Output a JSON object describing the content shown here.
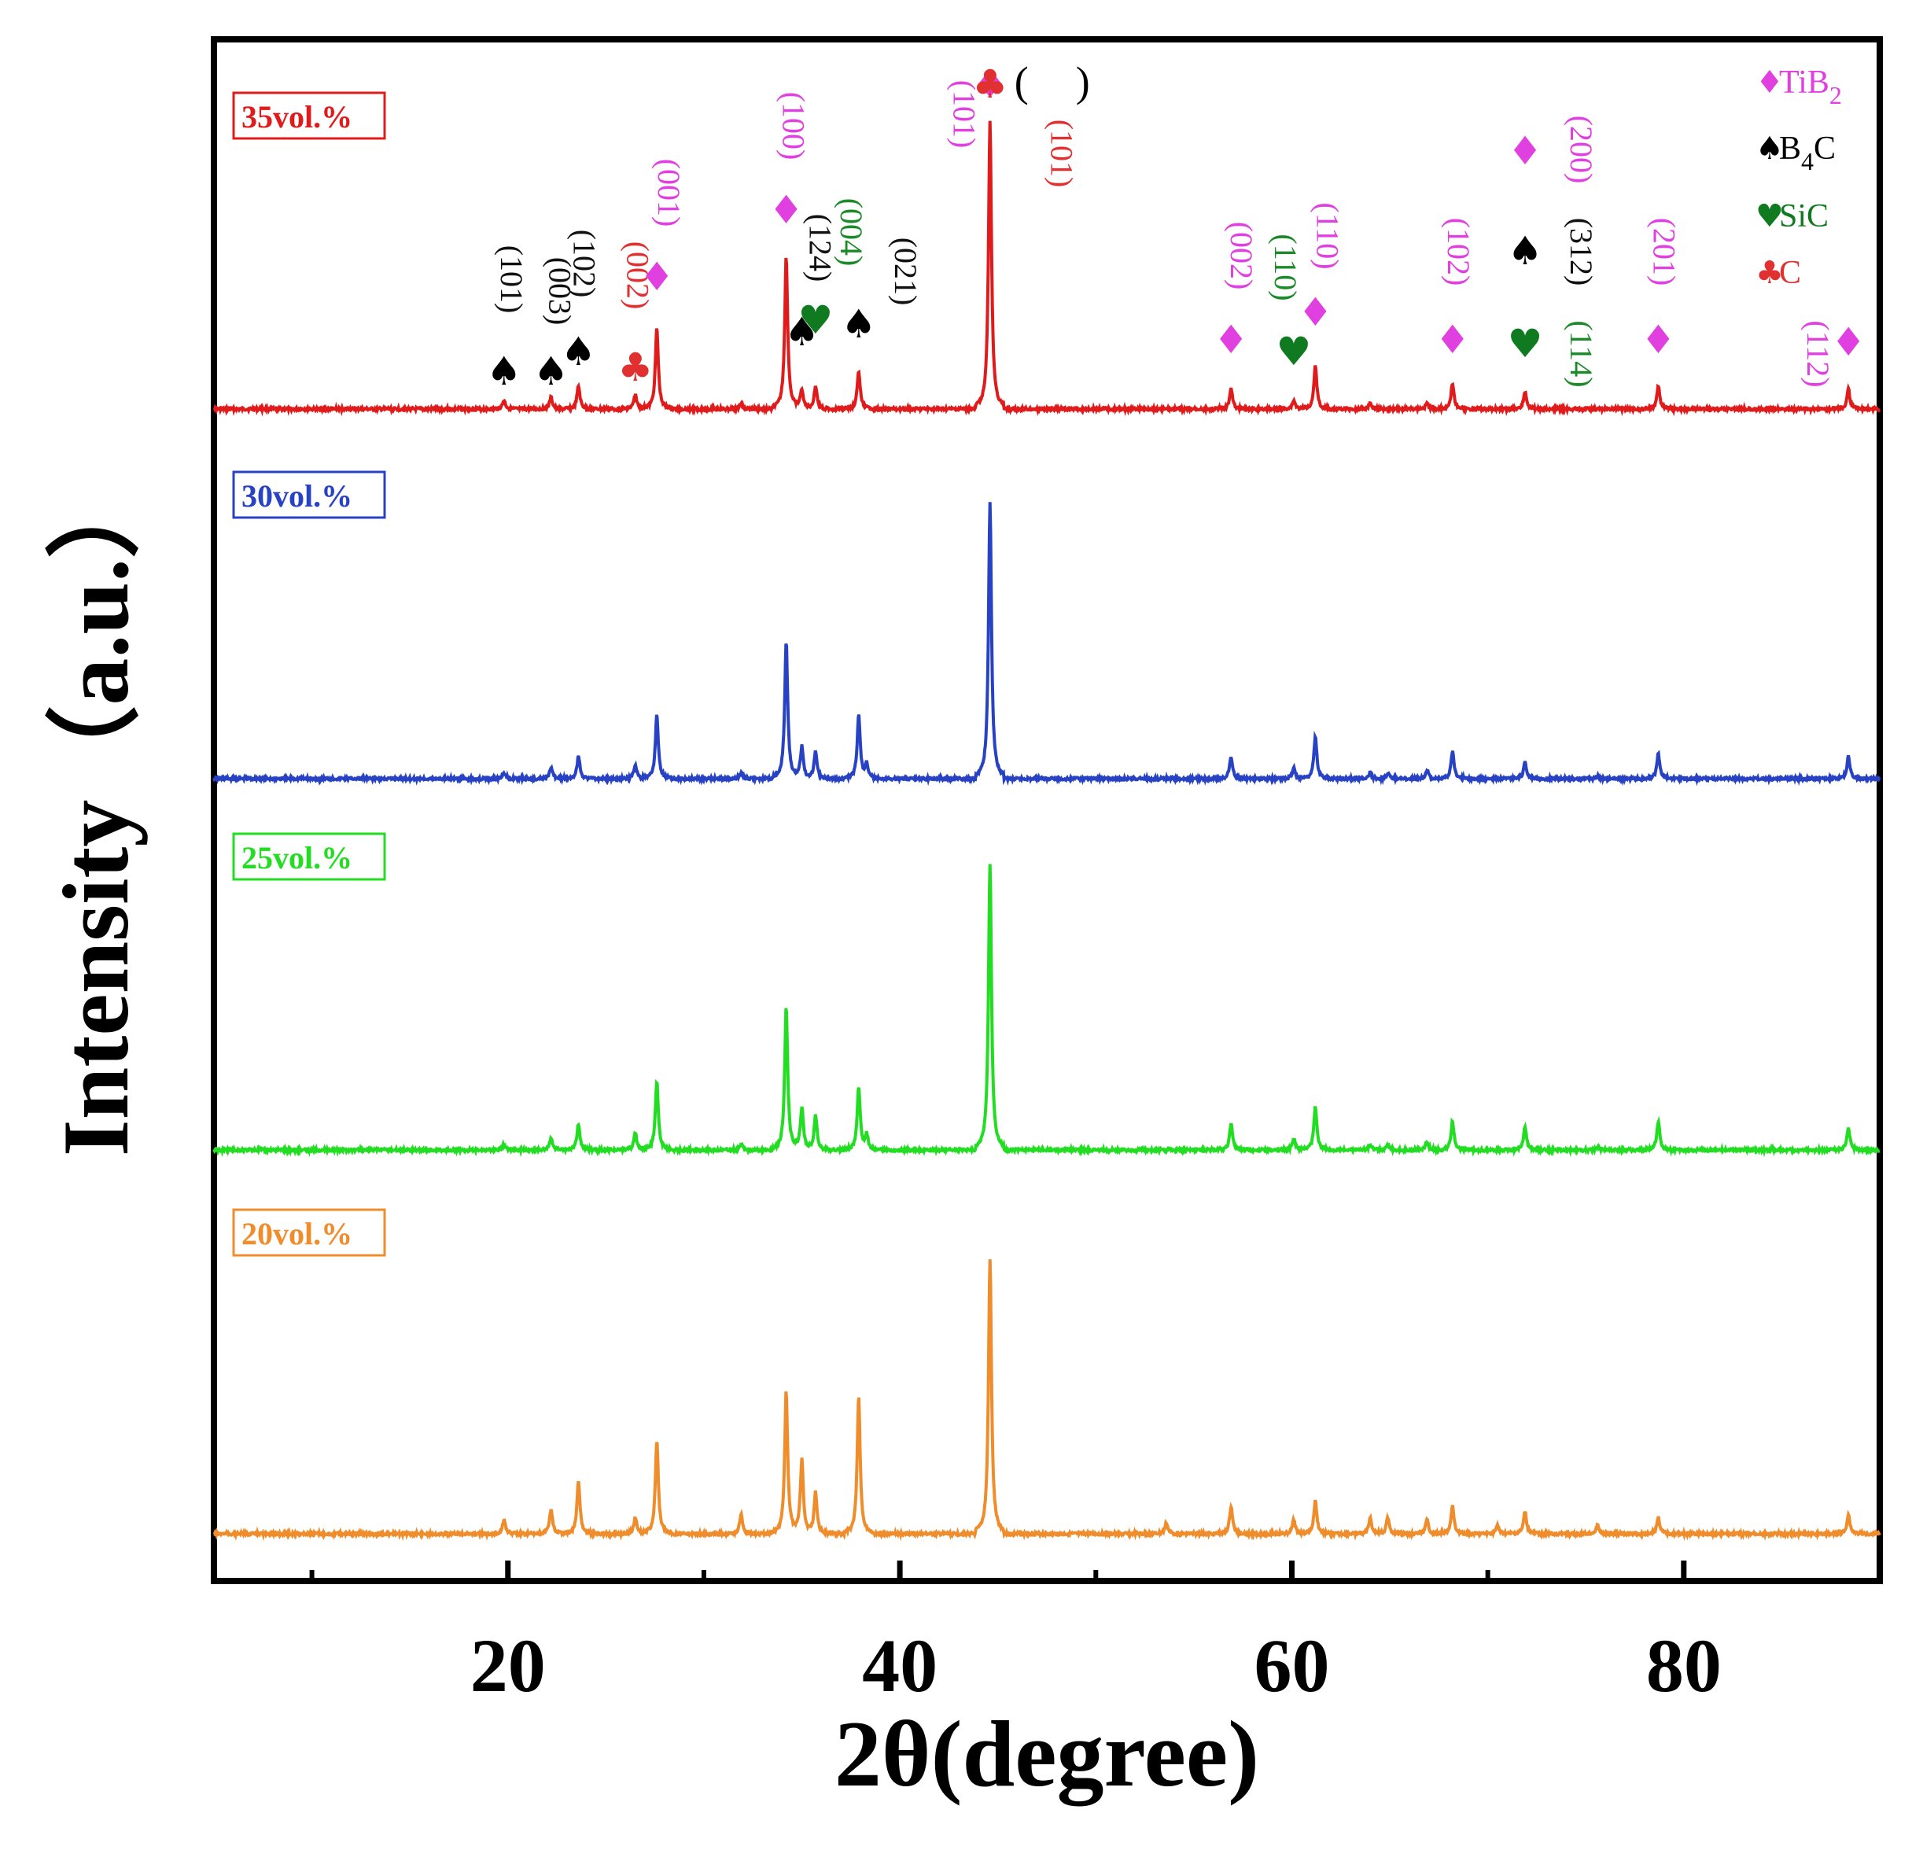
{
  "chart_data": {
    "type": "line",
    "title": "",
    "xlabel": "2θ(degree)",
    "ylabel": "Intensity（a.u.）",
    "xlim": [
      5,
      90
    ],
    "xticks": [
      20,
      40,
      60,
      80
    ],
    "xtick_labels": [
      "20",
      "40",
      "60",
      "80"
    ],
    "y_ticks_shown": false,
    "series": [
      {
        "name": "35vol.%",
        "color": "#e01b1b",
        "peaks": [
          [
            19.8,
            0.03
          ],
          [
            22.2,
            0.04
          ],
          [
            23.6,
            0.08
          ],
          [
            26.5,
            0.05
          ],
          [
            27.6,
            0.28
          ],
          [
            31.9,
            0.02
          ],
          [
            34.2,
            0.53
          ],
          [
            35.0,
            0.07
          ],
          [
            35.7,
            0.08
          ],
          [
            37.9,
            0.13
          ],
          [
            44.6,
            1.0
          ],
          [
            56.9,
            0.07
          ],
          [
            60.1,
            0.03
          ],
          [
            61.2,
            0.15
          ],
          [
            64.0,
            0.02
          ],
          [
            66.9,
            0.02
          ],
          [
            68.2,
            0.09
          ],
          [
            71.9,
            0.06
          ],
          [
            78.7,
            0.08
          ],
          [
            88.4,
            0.07
          ]
        ]
      },
      {
        "name": "30vol.%",
        "color": "#2842c4",
        "peaks": [
          [
            19.8,
            0.02
          ],
          [
            22.2,
            0.04
          ],
          [
            23.6,
            0.08
          ],
          [
            26.5,
            0.05
          ],
          [
            27.6,
            0.23
          ],
          [
            31.9,
            0.02
          ],
          [
            34.2,
            0.5
          ],
          [
            35.0,
            0.12
          ],
          [
            35.7,
            0.1
          ],
          [
            37.9,
            0.23
          ],
          [
            38.3,
            0.05
          ],
          [
            44.6,
            1.0
          ],
          [
            56.9,
            0.08
          ],
          [
            60.1,
            0.04
          ],
          [
            61.2,
            0.15
          ],
          [
            64.0,
            0.02
          ],
          [
            64.9,
            0.02
          ],
          [
            66.9,
            0.03
          ],
          [
            68.2,
            0.1
          ],
          [
            71.9,
            0.06
          ],
          [
            75.6,
            0.01
          ],
          [
            78.7,
            0.09
          ],
          [
            88.4,
            0.08
          ]
        ]
      },
      {
        "name": "25vol.%",
        "color": "#22dd22",
        "peaks": [
          [
            19.8,
            0.02
          ],
          [
            22.2,
            0.04
          ],
          [
            23.6,
            0.09
          ],
          [
            26.5,
            0.06
          ],
          [
            27.6,
            0.24
          ],
          [
            31.9,
            0.02
          ],
          [
            34.2,
            0.5
          ],
          [
            35.0,
            0.15
          ],
          [
            35.7,
            0.12
          ],
          [
            37.9,
            0.22
          ],
          [
            38.3,
            0.05
          ],
          [
            44.6,
            1.0
          ],
          [
            56.9,
            0.09
          ],
          [
            60.1,
            0.04
          ],
          [
            61.2,
            0.15
          ],
          [
            64.0,
            0.02
          ],
          [
            64.9,
            0.02
          ],
          [
            66.9,
            0.03
          ],
          [
            68.2,
            0.1
          ],
          [
            71.9,
            0.08
          ],
          [
            75.6,
            0.01
          ],
          [
            78.7,
            0.1
          ],
          [
            88.4,
            0.08
          ]
        ]
      },
      {
        "name": "20vol.%",
        "color": "#ef8c2c",
        "peaks": [
          [
            19.8,
            0.05
          ],
          [
            22.2,
            0.09
          ],
          [
            23.6,
            0.19
          ],
          [
            26.5,
            0.06
          ],
          [
            27.6,
            0.34
          ],
          [
            31.9,
            0.07
          ],
          [
            34.2,
            0.52
          ],
          [
            35.0,
            0.27
          ],
          [
            35.7,
            0.15
          ],
          [
            37.9,
            0.5
          ],
          [
            44.6,
            1.0
          ],
          [
            53.6,
            0.04
          ],
          [
            56.9,
            0.1
          ],
          [
            60.1,
            0.05
          ],
          [
            61.2,
            0.12
          ],
          [
            64.0,
            0.06
          ],
          [
            64.9,
            0.06
          ],
          [
            66.9,
            0.05
          ],
          [
            68.2,
            0.1
          ],
          [
            70.5,
            0.03
          ],
          [
            71.9,
            0.08
          ],
          [
            75.6,
            0.03
          ],
          [
            78.7,
            0.06
          ],
          [
            88.4,
            0.07
          ]
        ]
      }
    ],
    "legend": {
      "placement": "top-right",
      "entries": [
        {
          "symbol": "♦",
          "symbol_name": "diamond-icon",
          "label": "TiB",
          "sub": "2",
          "label_after": "",
          "color": "#e040e0"
        },
        {
          "symbol": "♠",
          "symbol_name": "spade-icon",
          "label": "B",
          "sub": "4",
          "label_after": "C",
          "color": "#000000"
        },
        {
          "symbol": "♥",
          "symbol_name": "heart-icon",
          "label": "SiC",
          "sub": "",
          "label_after": "",
          "color": "#0f7a1f"
        },
        {
          "symbol": "♣",
          "symbol_name": "club-icon",
          "label": "C",
          "sub": "",
          "label_after": "",
          "color": "#e03030"
        }
      ]
    },
    "annotations": [
      {
        "x": 19.8,
        "phase": "B4C",
        "hkl": "(101)"
      },
      {
        "x": 22.2,
        "phase": "B4C",
        "hkl": "(003)"
      },
      {
        "x": 23.6,
        "phase": "B4C",
        "hkl": "(102)"
      },
      {
        "x": 26.5,
        "phase": "C",
        "hkl": "(002)"
      },
      {
        "x": 27.6,
        "phase": "TiB2",
        "hkl": "(001)"
      },
      {
        "x": 34.2,
        "phase": "TiB2",
        "hkl": "(100)"
      },
      {
        "x": 35.0,
        "phase": "B4C",
        "hkl": "(124)"
      },
      {
        "x": 35.7,
        "phase": "SiC",
        "hkl": "(004)"
      },
      {
        "x": 37.9,
        "phase": "B4C",
        "hkl": "(021)"
      },
      {
        "x": 44.6,
        "phase": "TiB2",
        "hkl": "(101)"
      },
      {
        "x": 44.6,
        "phase": "C",
        "hkl": "(101)"
      },
      {
        "x": 56.9,
        "phase": "TiB2",
        "hkl": "(002)"
      },
      {
        "x": 60.1,
        "phase": "SiC",
        "hkl": "(110)"
      },
      {
        "x": 61.2,
        "phase": "TiB2",
        "hkl": "(110)"
      },
      {
        "x": 68.2,
        "phase": "TiB2",
        "hkl": "(102)"
      },
      {
        "x": 71.9,
        "phase": "TiB2",
        "hkl": "(200)"
      },
      {
        "x": 71.9,
        "phase": "B4C",
        "hkl": "(312)"
      },
      {
        "x": 71.9,
        "phase": "SiC",
        "hkl": "(114)"
      },
      {
        "x": 78.7,
        "phase": "TiB2",
        "hkl": "(201)"
      },
      {
        "x": 88.4,
        "phase": "TiB2",
        "hkl": "(112)"
      }
    ],
    "annotation_paren_open": "(",
    "annotation_paren_close": ")"
  }
}
